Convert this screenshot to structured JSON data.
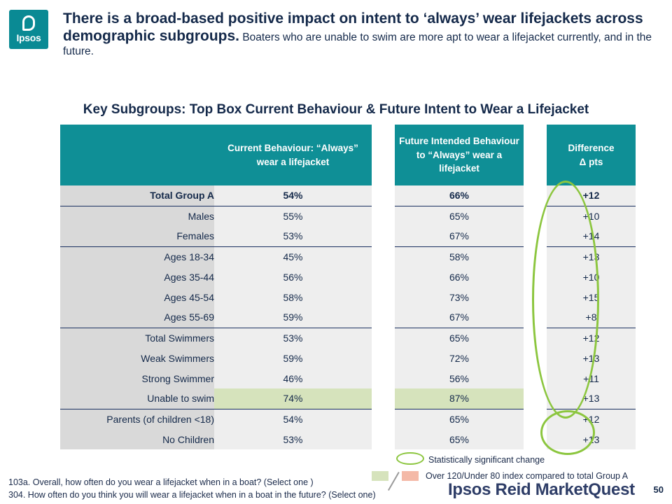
{
  "logo": {
    "text": "Ipsos"
  },
  "headline": {
    "bold": "There is a broad-based positive impact on intent to ‘always’ wear lifejackets across demographic subgroups.",
    "sub": " Boaters who are unable to swim are more apt to wear a lifejacket currently, and in the future."
  },
  "chart_title": "Key Subgroups: Top Box Current Behaviour & Future Intent to Wear a Lifejacket",
  "table": {
    "headers": {
      "current": "Current Behaviour: “Always” wear a lifejacket",
      "future": "Future Intended Behaviour to “Always” wear a lifejacket",
      "difference_line1": "Difference",
      "difference_line2": "Δ pts"
    },
    "rows": [
      {
        "label": "Total Group A",
        "current": "54%",
        "future": "66%",
        "diff": "+12"
      },
      {
        "label": "Males",
        "current": "55%",
        "future": "65%",
        "diff": "+10"
      },
      {
        "label": "Females",
        "current": "53%",
        "future": "67%",
        "diff": "+14"
      },
      {
        "label": "Ages 18-34",
        "current": "45%",
        "future": "58%",
        "diff": "+13"
      },
      {
        "label": "Ages 35-44",
        "current": "56%",
        "future": "66%",
        "diff": "+10"
      },
      {
        "label": "Ages 45-54",
        "current": "58%",
        "future": "73%",
        "diff": "+15"
      },
      {
        "label": "Ages 55-69",
        "current": "59%",
        "future": "67%",
        "diff": "+8"
      },
      {
        "label": "Total Swimmers",
        "current": "53%",
        "future": "65%",
        "diff": "+12"
      },
      {
        "label": "Weak Swimmers",
        "current": "59%",
        "future": "72%",
        "diff": "+13"
      },
      {
        "label": "Strong Swimmer",
        "current": "46%",
        "future": "56%",
        "diff": "+11"
      },
      {
        "label": "Unable to swim",
        "current": "74%",
        "future": "87%",
        "diff": "+13"
      },
      {
        "label": "Parents (of children <18)",
        "current": "54%",
        "future": "65%",
        "diff": "+12"
      },
      {
        "label": "No Children",
        "current": "53%",
        "future": "65%",
        "diff": "+13"
      }
    ]
  },
  "legend": {
    "significant": "Statistically significant change",
    "index": "Over 120/Under 80 index compared to total Group A",
    "colors": {
      "over_index": "#d6e3bc",
      "under_index": "#f4b9a7",
      "significant_oval": "#8cc63f",
      "header": "#0f8f96"
    }
  },
  "footnote": {
    "line1": "103a. Overall, how often do you wear a lifejacket when in a boat? (Select one )",
    "line2": "304. How often do you think you will wear a lifejacket when in a boat in the future? (Select one)"
  },
  "brand": "Ipsos Reid MarketQuest",
  "page_number": "50"
}
